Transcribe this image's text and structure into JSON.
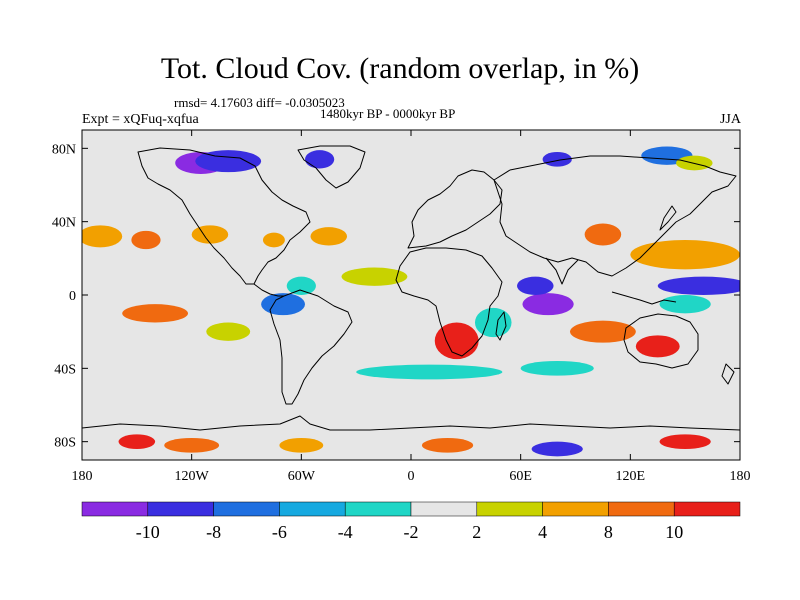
{
  "header": {
    "title": "Tot. Cloud Cov. (random overlap, in %)",
    "stats": "rmsd= 4.17603  diff= -0.0305023",
    "period": "1480kyr BP - 0000kyr BP",
    "experiment": "Expt = xQFuq-xqfua",
    "season": "JJA"
  },
  "map": {
    "projection": "cylindrical-equidistant",
    "lon_range": [
      -180,
      180
    ],
    "lat_range": [
      -90,
      90
    ],
    "background_color": "#e6e6e6",
    "lat_ticks": [
      {
        "value": 80,
        "label": "80N"
      },
      {
        "value": 40,
        "label": "40N"
      },
      {
        "value": 0,
        "label": "0"
      },
      {
        "value": -40,
        "label": "40S"
      },
      {
        "value": -80,
        "label": "80S"
      }
    ],
    "lon_ticks": [
      {
        "value": -180,
        "label": "180"
      },
      {
        "value": -120,
        "label": "120W"
      },
      {
        "value": -60,
        "label": "60W"
      },
      {
        "value": 0,
        "label": "0"
      },
      {
        "value": 60,
        "label": "60E"
      },
      {
        "value": 120,
        "label": "120E"
      },
      {
        "value": 180,
        "label": "180"
      }
    ],
    "anomaly_regions": [
      {
        "lon": -115,
        "lat": 72,
        "rx": 14,
        "ry": 6,
        "level": -10
      },
      {
        "lon": -100,
        "lat": 73,
        "rx": 18,
        "ry": 6,
        "level": -8
      },
      {
        "lon": -50,
        "lat": 74,
        "rx": 8,
        "ry": 5,
        "level": -8
      },
      {
        "lon": 80,
        "lat": 74,
        "rx": 8,
        "ry": 4,
        "level": -8
      },
      {
        "lon": 140,
        "lat": 76,
        "rx": 14,
        "ry": 5,
        "level": -6
      },
      {
        "lon": 155,
        "lat": 72,
        "rx": 10,
        "ry": 4,
        "level": 4
      },
      {
        "lon": -170,
        "lat": 32,
        "rx": 12,
        "ry": 6,
        "level": 6
      },
      {
        "lon": -145,
        "lat": 30,
        "rx": 8,
        "ry": 5,
        "level": 8
      },
      {
        "lon": -110,
        "lat": 33,
        "rx": 10,
        "ry": 5,
        "level": 6
      },
      {
        "lon": -75,
        "lat": 30,
        "rx": 6,
        "ry": 4,
        "level": 6
      },
      {
        "lon": -45,
        "lat": 32,
        "rx": 10,
        "ry": 5,
        "level": 6
      },
      {
        "lon": 105,
        "lat": 33,
        "rx": 10,
        "ry": 6,
        "level": 8
      },
      {
        "lon": 150,
        "lat": 22,
        "rx": 30,
        "ry": 8,
        "level": 6
      },
      {
        "lon": 160,
        "lat": 5,
        "rx": 25,
        "ry": 5,
        "level": -8
      },
      {
        "lon": 150,
        "lat": -5,
        "rx": 14,
        "ry": 5,
        "level": -4
      },
      {
        "lon": -140,
        "lat": -10,
        "rx": 18,
        "ry": 5,
        "level": 8
      },
      {
        "lon": -100,
        "lat": -20,
        "rx": 12,
        "ry": 5,
        "level": 4
      },
      {
        "lon": -70,
        "lat": -5,
        "rx": 12,
        "ry": 6,
        "level": -6
      },
      {
        "lon": -60,
        "lat": 5,
        "rx": 8,
        "ry": 5,
        "level": -4
      },
      {
        "lon": -20,
        "lat": 10,
        "rx": 18,
        "ry": 5,
        "level": 4
      },
      {
        "lon": 25,
        "lat": -25,
        "rx": 12,
        "ry": 10,
        "level": 10
      },
      {
        "lon": 45,
        "lat": -15,
        "rx": 10,
        "ry": 8,
        "level": -4
      },
      {
        "lon": 75,
        "lat": -5,
        "rx": 14,
        "ry": 6,
        "level": -10
      },
      {
        "lon": 68,
        "lat": 5,
        "rx": 10,
        "ry": 5,
        "level": -8
      },
      {
        "lon": 105,
        "lat": -20,
        "rx": 18,
        "ry": 6,
        "level": 8
      },
      {
        "lon": 135,
        "lat": -28,
        "rx": 12,
        "ry": 6,
        "level": 10
      },
      {
        "lon": 10,
        "lat": -42,
        "rx": 40,
        "ry": 4,
        "level": -4
      },
      {
        "lon": 80,
        "lat": -40,
        "rx": 20,
        "ry": 4,
        "level": -4
      },
      {
        "lon": -150,
        "lat": -80,
        "rx": 10,
        "ry": 4,
        "level": 10
      },
      {
        "lon": -120,
        "lat": -82,
        "rx": 15,
        "ry": 4,
        "level": 8
      },
      {
        "lon": -60,
        "lat": -82,
        "rx": 12,
        "ry": 4,
        "level": 6
      },
      {
        "lon": 20,
        "lat": -82,
        "rx": 14,
        "ry": 4,
        "level": 8
      },
      {
        "lon": 80,
        "lat": -84,
        "rx": 14,
        "ry": 4,
        "level": -8
      },
      {
        "lon": 150,
        "lat": -80,
        "rx": 14,
        "ry": 4,
        "level": 10
      }
    ]
  },
  "colorbar": {
    "bins": [
      {
        "color": "#8a2be2"
      },
      {
        "color": "#3a2ee0"
      },
      {
        "color": "#1f6fe0"
      },
      {
        "color": "#16a9e0"
      },
      {
        "color": "#20d6c6"
      },
      {
        "color": "#e6e6e6"
      },
      {
        "color": "#c8d200"
      },
      {
        "color": "#f2a000"
      },
      {
        "color": "#f06a10"
      },
      {
        "color": "#e8201a"
      }
    ],
    "labels": [
      "-10",
      "-8",
      "-6",
      "-4",
      "-2",
      "2",
      "4",
      "8",
      "10"
    ]
  },
  "level_colors": {
    "-10": "#8a2be2",
    "-8": "#3a2ee0",
    "-6": "#1f6fe0",
    "-4": "#20d6c6",
    "4": "#c8d200",
    "6": "#f2a000",
    "8": "#f06a10",
    "10": "#e8201a"
  }
}
